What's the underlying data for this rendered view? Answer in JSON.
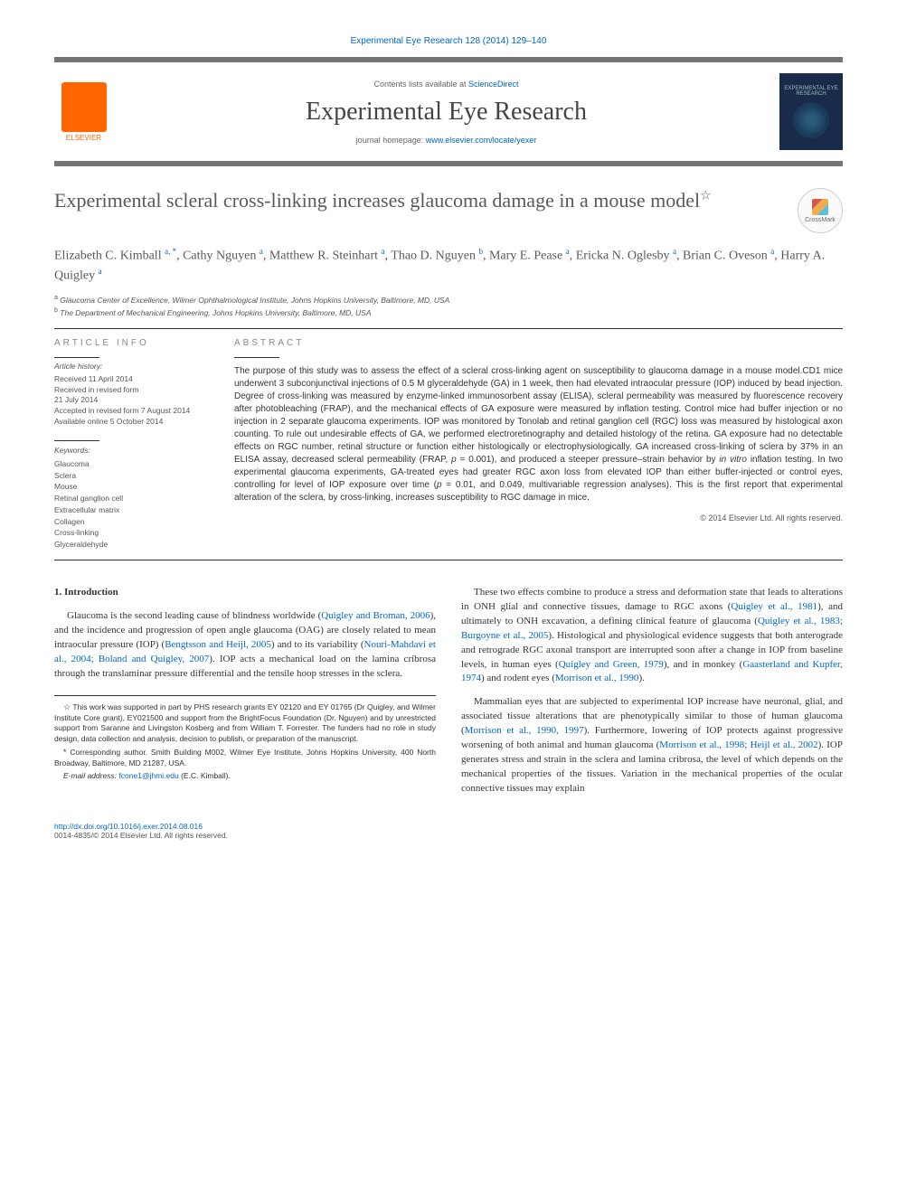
{
  "header": {
    "citation": "Experimental Eye Research 128 (2014) 129–140",
    "contents_prefix": "Contents lists available at ",
    "contents_link": "ScienceDirect",
    "journal_name": "Experimental Eye Research",
    "homepage_prefix": "journal homepage: ",
    "homepage_link": "www.elsevier.com/locate/yexer",
    "publisher_label": "ELSEVIER",
    "cover_text": "EXPERIMENTAL EYE RESEARCH"
  },
  "crossmark": "CrossMark",
  "title": "Experimental scleral cross-linking increases glaucoma damage in a mouse model",
  "title_star": "☆",
  "authors_html": "Elizabeth C. Kimball <sup>a, *</sup>, Cathy Nguyen <sup>a</sup>, Matthew R. Steinhart <sup>a</sup>, Thao D. Nguyen <sup>b</sup>, Mary E. Pease <sup>a</sup>, Ericka N. Oglesby <sup>a</sup>, Brian C. Oveson <sup>a</sup>, Harry A. Quigley <sup>a</sup>",
  "affiliations": {
    "a": "Glaucoma Center of Excellence, Wilmer Ophthalmological Institute, Johns Hopkins University, Baltimore, MD, USA",
    "b": "The Department of Mechanical Engineering, Johns Hopkins University, Baltimore, MD, USA"
  },
  "article_info": {
    "heading": "ARTICLE INFO",
    "history_label": "Article history:",
    "history": [
      "Received 11 April 2014",
      "Received in revised form",
      "21 July 2014",
      "Accepted in revised form 7 August 2014",
      "Available online 5 October 2014"
    ],
    "keywords_label": "Keywords:",
    "keywords": [
      "Glaucoma",
      "Sclera",
      "Mouse",
      "Retinal ganglion cell",
      "Extracellular matrix",
      "Collagen",
      "Cross-linking",
      "Glyceraldehyde"
    ]
  },
  "abstract": {
    "heading": "ABSTRACT",
    "text": "The purpose of this study was to assess the effect of a scleral cross-linking agent on susceptibility to glaucoma damage in a mouse model.CD1 mice underwent 3 subconjunctival injections of 0.5 M glyceraldehyde (GA) in 1 week, then had elevated intraocular pressure (IOP) induced by bead injection. Degree of cross-linking was measured by enzyme-linked immunosorbent assay (ELISA), scleral permeability was measured by fluorescence recovery after photobleaching (FRAP), and the mechanical effects of GA exposure were measured by inflation testing. Control mice had buffer injection or no injection in 2 separate glaucoma experiments. IOP was monitored by Tonolab and retinal ganglion cell (RGC) loss was measured by histological axon counting. To rule out undesirable effects of GA, we performed electroretinography and detailed histology of the retina. GA exposure had no detectable effects on RGC number, retinal structure or function either histologically or electrophysiologically. GA increased cross-linking of sclera by 37% in an ELISA assay, decreased scleral permeability (FRAP, p = 0.001), and produced a steeper pressure–strain behavior by in vitro inflation testing. In two experimental glaucoma experiments, GA-treated eyes had greater RGC axon loss from elevated IOP than either buffer-injected or control eyes, controlling for level of IOP exposure over time (p = 0.01, and 0.049, multivariable regression analyses). This is the first report that experimental alteration of the sclera, by cross-linking, increases susceptibility to RGC damage in mice.",
    "copyright": "© 2014 Elsevier Ltd. All rights reserved."
  },
  "body": {
    "section_number": "1.",
    "section_title": "Introduction",
    "col1_p1": "Glaucoma is the second leading cause of blindness worldwide (Quigley and Broman, 2006), and the incidence and progression of open angle glaucoma (OAG) are closely related to mean intraocular pressure (IOP) (Bengtsson and Heijl, 2005) and to its variability (Nouri-Mahdavi et al., 2004; Boland and Quigley, 2007). IOP acts a mechanical load on the lamina cribrosa through the translaminar pressure differential and the tensile hoop stresses in the sclera.",
    "col2_p1": "These two effects combine to produce a stress and deformation state that leads to alterations in ONH glial and connective tissues, damage to RGC axons (Quigley et al., 1981), and ultimately to ONH excavation, a defining clinical feature of glaucoma (Quigley et al., 1983; Burgoyne et al., 2005). Histological and physiological evidence suggests that both anterograde and retrograde RGC axonal transport are interrupted soon after a change in IOP from baseline levels, in human eyes (Quigley and Green, 1979), and in monkey (Gaasterland and Kupfer, 1974) and rodent eyes (Morrison et al., 1990).",
    "col2_p2": "Mammalian eyes that are subjected to experimental IOP increase have neuronal, glial, and associated tissue alterations that are phenotypically similar to those of human glaucoma (Morrison et al., 1990, 1997). Furthermore, lowering of IOP protects against progressive worsening of both animal and human glaucoma (Morrison et al., 1998; Heijl et al., 2002). IOP generates stress and strain in the sclera and lamina cribrosa, the level of which depends on the mechanical properties of the tissues. Variation in the mechanical properties of the ocular connective tissues may explain"
  },
  "footnotes": {
    "funding": "This work was supported in part by PHS research grants EY 02120 and EY 01765 (Dr Quigley, and Wilmer Institute Core grant), EY021500 and support from the BrightFocus Foundation (Dr. Nguyen) and by unrestricted support from Saranne and Livingston Kosberg and from William T. Forrester. The funders had no role in study design, data collection and analysis, decision to publish, or preparation of the manuscript.",
    "corresponding": "Corresponding author. Smith Building M002, Wilmer Eye Institute, Johns Hopkins University, 400 North Broadway, Baltimore, MD 21287, USA.",
    "email_label": "E-mail address:",
    "email": "fcone1@jhmi.edu",
    "email_suffix": "(E.C. Kimball)."
  },
  "footer": {
    "doi": "http://dx.doi.org/10.1016/j.exer.2014.08.016",
    "issn": "0014-4835/© 2014 Elsevier Ltd. All rights reserved."
  },
  "colors": {
    "link": "#0066cc",
    "elsevier_orange": "#ff6600",
    "rule_gray": "#757575",
    "text_gray": "#5a5a5a"
  }
}
